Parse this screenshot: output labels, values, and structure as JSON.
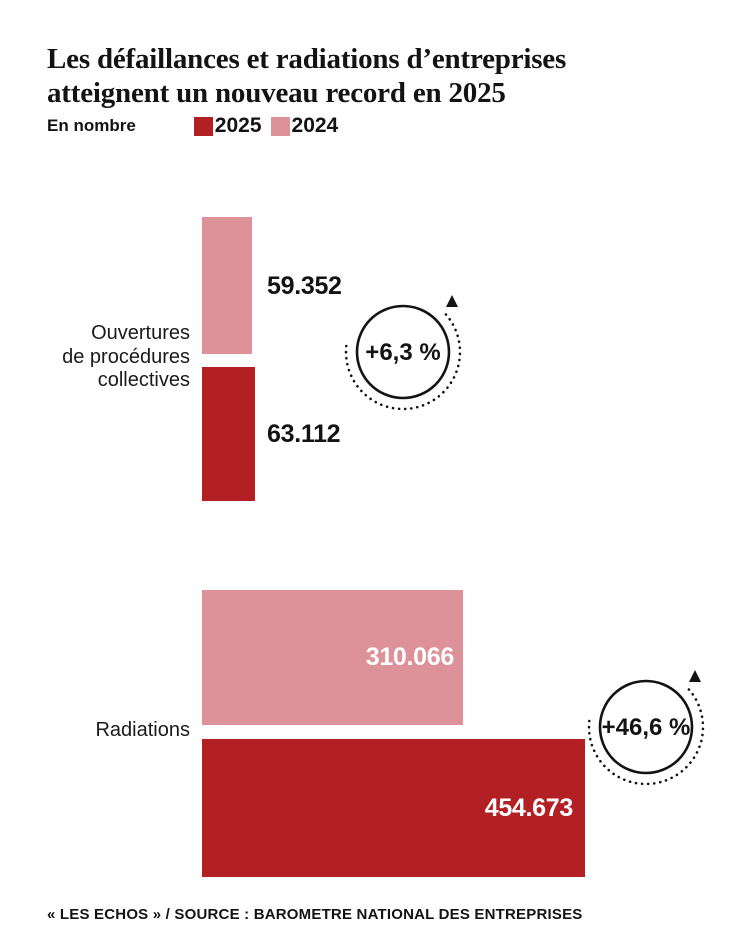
{
  "title": {
    "lines": [
      "Les défaillances et radiations d’entreprises",
      "atteignent un nouveau record en 2025"
    ]
  },
  "legend": {
    "unit_label": "En nombre",
    "items": [
      {
        "label": "2025",
        "color": "#b22024"
      },
      {
        "label": "2024",
        "color": "#dd9199"
      }
    ]
  },
  "chart_data": {
    "type": "bar",
    "orientation": "horizontal",
    "unit": "nombre",
    "categories": [
      "Ouvertures de procédures collectives",
      "Radiations"
    ],
    "series": [
      {
        "name": "2024",
        "color": "#dd9199",
        "values": [
          59352,
          310066
        ],
        "value_labels": [
          "59.352",
          "310.066"
        ]
      },
      {
        "name": "2025",
        "color": "#b22024",
        "values": [
          63112,
          454673
        ],
        "value_labels": [
          "63.112",
          "454.673"
        ]
      }
    ],
    "value_label_position": {
      "group_0": "outside-right-black",
      "group_1": "inside-right-white"
    },
    "annotations": [
      {
        "category": "Ouvertures de procédures collectives",
        "label": "+6,3 %",
        "direction": "up"
      },
      {
        "category": "Radiations",
        "label": "+46,6 %",
        "direction": "up"
      }
    ],
    "xlim": [
      0,
      454673
    ],
    "grid": false,
    "legend_position": "top-left"
  },
  "category_labels": [
    {
      "lines": [
        "Ouvertures",
        "de procédures",
        "collectives"
      ]
    },
    {
      "lines": [
        "Radiations"
      ]
    }
  ],
  "footer": {
    "credit": "« LES ECHOS » / SOURCE : BAROMETRE NATIONAL DES ENTREPRISES"
  }
}
